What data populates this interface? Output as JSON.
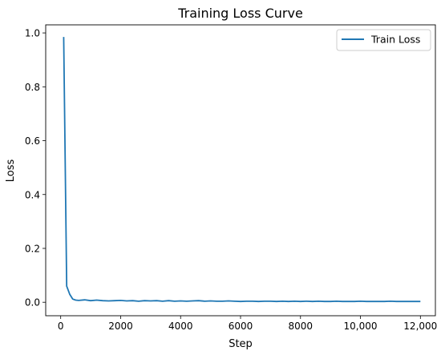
{
  "chart_data": {
    "type": "line",
    "title": "Training Loss Curve",
    "xlabel": "Step",
    "ylabel": "Loss",
    "xlim": [
      -500,
      12500
    ],
    "ylim": [
      -0.05,
      1.03
    ],
    "xticks": [
      0,
      2000,
      4000,
      6000,
      8000,
      10000,
      12000
    ],
    "xtick_labels": [
      "0",
      "2000",
      "4000",
      "6000",
      "8000",
      "10,000",
      "12,000"
    ],
    "yticks": [
      0.0,
      0.2,
      0.4,
      0.6,
      0.8,
      1.0
    ],
    "ytick_labels": [
      "0.0",
      "0.2",
      "0.4",
      "0.6",
      "0.8",
      "1.0"
    ],
    "grid": false,
    "legend": {
      "position": "top-right",
      "entries": [
        "Train Loss"
      ]
    },
    "series": [
      {
        "name": "Train Loss",
        "color": "#1f77b4",
        "x": [
          100,
          200,
          300,
          400,
          500,
          600,
          800,
          1000,
          1200,
          1400,
          1600,
          1800,
          2000,
          2200,
          2400,
          2600,
          2800,
          3000,
          3200,
          3400,
          3600,
          3800,
          4000,
          4200,
          4400,
          4600,
          4800,
          5000,
          5200,
          5400,
          5600,
          5800,
          6000,
          6200,
          6400,
          6600,
          6800,
          7000,
          7200,
          7400,
          7600,
          7800,
          8000,
          8200,
          8400,
          8600,
          8800,
          9000,
          9200,
          9400,
          9600,
          9800,
          10000,
          10200,
          10400,
          10600,
          10800,
          11000,
          11200,
          11400,
          11600,
          11800,
          12000
        ],
        "y": [
          0.985,
          0.06,
          0.03,
          0.012,
          0.008,
          0.007,
          0.009,
          0.006,
          0.008,
          0.006,
          0.005,
          0.006,
          0.007,
          0.005,
          0.006,
          0.004,
          0.006,
          0.005,
          0.006,
          0.004,
          0.006,
          0.004,
          0.005,
          0.004,
          0.005,
          0.006,
          0.004,
          0.005,
          0.004,
          0.004,
          0.005,
          0.004,
          0.003,
          0.004,
          0.004,
          0.003,
          0.004,
          0.004,
          0.003,
          0.004,
          0.003,
          0.004,
          0.003,
          0.004,
          0.003,
          0.004,
          0.003,
          0.003,
          0.004,
          0.003,
          0.003,
          0.003,
          0.004,
          0.003,
          0.003,
          0.003,
          0.003,
          0.004,
          0.003,
          0.003,
          0.003,
          0.003,
          0.003
        ]
      }
    ]
  }
}
